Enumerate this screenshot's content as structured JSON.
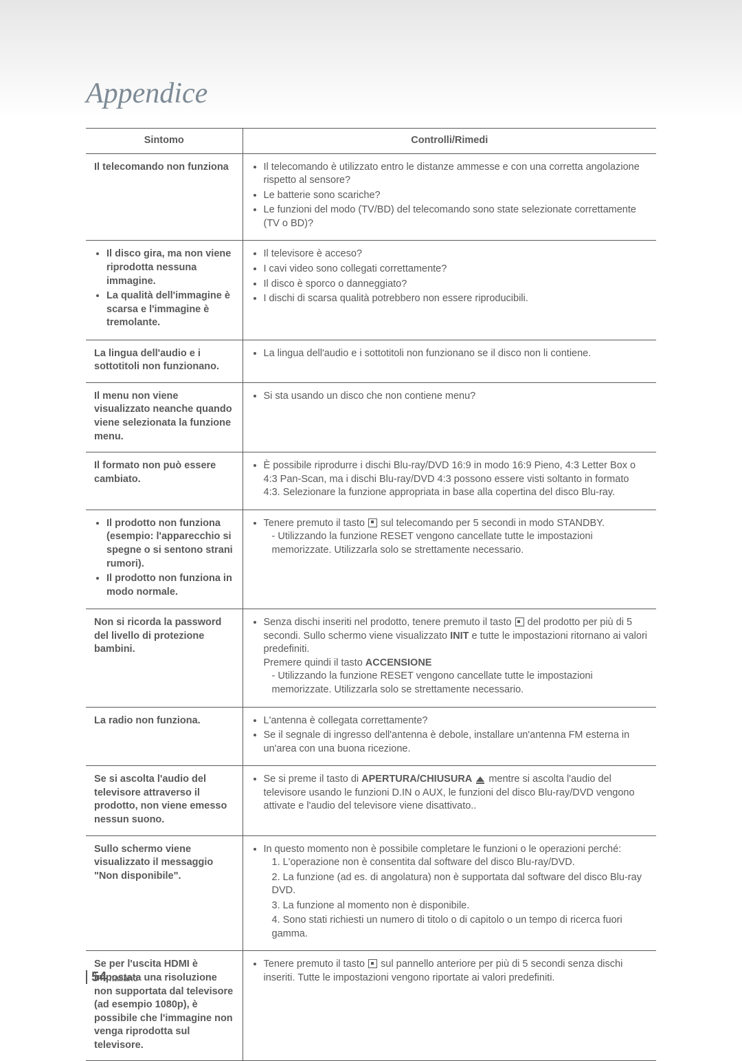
{
  "title": "Appendice",
  "columns": {
    "symptom": "Sintomo",
    "remedy": "Controlli/Rimedi"
  },
  "rows": [
    {
      "symptom_plain": "Il telecomando non funziona",
      "remedies": [
        "Il telecomando è utilizzato entro le distanze ammesse e con una corretta angolazione rispetto al sensore?",
        "Le batterie sono scariche?",
        "Le funzioni del modo (TV/BD) del telecomando sono state selezionate correttamente (TV o BD)?"
      ]
    },
    {
      "symptom_bullets": [
        "Il disco gira, ma non viene riprodotta nessuna immagine.",
        "La qualità dell'immagine è scarsa e l'immagine è tremolante."
      ],
      "remedies": [
        "Il televisore è acceso?",
        "I cavi video sono collegati correttamente?",
        "Il disco è sporco o danneggiato?",
        "I dischi di scarsa qualità potrebbero non essere riproducibili."
      ]
    },
    {
      "symptom_plain": "La lingua dell'audio e i sottotitoli non funzionano.",
      "remedies": [
        "La lingua dell'audio e i sottotitoli non funzionano se il disco non li contiene."
      ]
    },
    {
      "symptom_plain": "Il menu non viene visualizzato neanche quando viene selezionata la funzione menu.",
      "remedies": [
        "Si sta usando un disco che non contiene menu?"
      ]
    },
    {
      "symptom_plain": "Il formato non può essere cambiato.",
      "remedies": [
        "È possibile riprodurre i dischi Blu-ray/DVD 16:9 in modo 16:9 Pieno, 4:3 Letter Box o 4:3 Pan-Scan, ma i dischi Blu-ray/DVD 4:3 possono essere visti soltanto in formato 4:3. Selezionare la funzione appropriata in base alla copertina del disco Blu-ray."
      ]
    },
    {
      "symptom_bullets": [
        "Il prodotto non funziona (esempio: l'apparecchio si spegne o si sentono strani rumori).",
        "Il prodotto non funziona in modo normale."
      ],
      "remedy_stop_pre": "Tenere premuto il tasto ",
      "remedy_stop_post": " sul telecomando per 5 secondi in modo STANDBY.",
      "remedy_sub": "Utilizzando la funzione RESET vengono cancellate tutte le impostazioni memorizzate. Utilizzarla solo se strettamente necessario."
    },
    {
      "symptom_plain": "Non si ricorda la password del livello di protezione bambini.",
      "remedy_pwd_pre": "Senza dischi inseriti nel prodotto, tenere premuto il tasto ",
      "remedy_pwd_post1": " del prodotto per più di 5 secondi. Sullo schermo viene visualizzato ",
      "remedy_pwd_bold1": "INIT",
      "remedy_pwd_post2": " e tutte le impostazioni ritornano ai valori predefiniti.",
      "remedy_pwd_line2_pre": "Premere quindi il tasto ",
      "remedy_pwd_bold2": "ACCENSIONE",
      "remedy_sub": "Utilizzando la funzione RESET vengono cancellate tutte le impostazioni memorizzate. Utilizzarla solo se strettamente necessario."
    },
    {
      "symptom_plain": "La radio non funziona.",
      "remedies": [
        "L'antenna è collegata correttamente?",
        "Se il segnale di ingresso dell'antenna è debole, installare un'antenna FM esterna in un'area con una buona ricezione."
      ]
    },
    {
      "symptom_plain": "Se si ascolta l'audio del televisore attraverso il prodotto, non viene emesso nessun suono.",
      "remedy_tvaudio_pre": "Se si preme il tasto di ",
      "remedy_tvaudio_bold": "APERTURA/CHIUSURA",
      "remedy_tvaudio_post": " mentre si ascolta l'audio del televisore usando le funzioni D.IN o AUX, le funzioni del disco Blu-ray/DVD vengono attivate e l'audio del televisore viene disattivato.."
    },
    {
      "symptom_plain": "Sullo schermo viene visualizzato il messaggio \"Non disponibile\".",
      "remedy_intro": "In questo momento non è possibile completare le funzioni o le operazioni perché:",
      "remedy_num": [
        "1. L'operazione non è consentita dal software del disco Blu-ray/DVD.",
        "2. La funzione (ad es. di angolatura) non è supportata dal software del disco Blu-ray DVD.",
        "3. La funzione al momento non è disponibile.",
        "4. Sono stati richiesti un numero di titolo o di capitolo o un tempo di ricerca fuori gamma."
      ]
    },
    {
      "symptom_plain": "Se per l'uscita HDMI è impostata una risoluzione non supportata dal televisore (ad esempio 1080p), è possibile che l'immagine non venga riprodotta sul televisore.",
      "remedy_hdmi_pre": "Tenere premuto il tasto ",
      "remedy_hdmi_post": " sul pannello anteriore per più di 5 secondi senza dischi inseriti. Tutte le impostazioni vengono riportate ai valori predefiniti."
    }
  ],
  "footer": {
    "page": "54",
    "lang": "Italiano"
  }
}
